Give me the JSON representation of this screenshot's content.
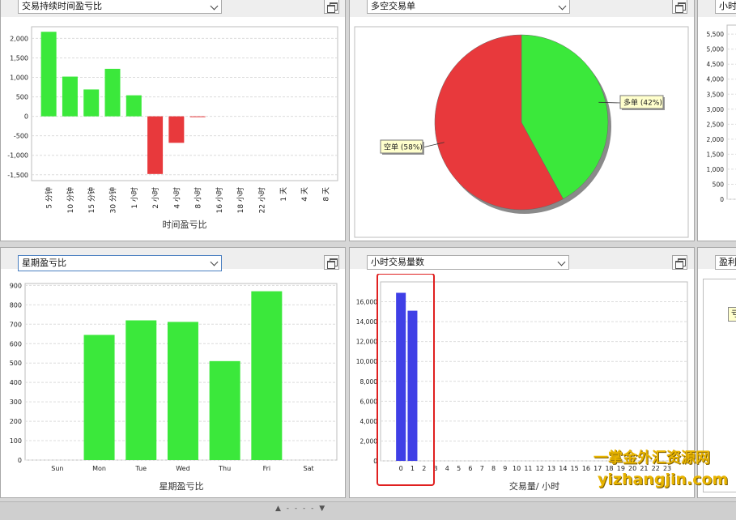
{
  "panels": {
    "p1": {
      "title": "交易持续时间盈亏比"
    },
    "p2": {
      "title": "多空交易单"
    },
    "p3": {
      "title": "小时"
    },
    "p4": {
      "title": "星期盈亏比"
    },
    "p5": {
      "title": "小时交易量数"
    },
    "p6": {
      "title": "盈利"
    }
  },
  "panel6_partial_label": "亏",
  "statusbar": {
    "grip": "▲ - - - - ▼"
  },
  "watermark": {
    "line1": "一掌金外汇资源网",
    "line2": "yizhangjin.com"
  },
  "colors": {
    "green": "#3be83b",
    "red": "#e8393c",
    "blue": "#3f3fe6",
    "highlight": "#e02020"
  },
  "chart_data": [
    {
      "id": "duration",
      "type": "bar",
      "categories": [
        "5 分钟",
        "10 分钟",
        "15 分钟",
        "30 分钟",
        "1 小时",
        "2 小时",
        "4 小时",
        "8 小时",
        "16 小时",
        "18 小时",
        "22 小时",
        "1 天",
        "4 天",
        "8 天"
      ],
      "values": [
        2170,
        1020,
        690,
        1220,
        540,
        -1480,
        -680,
        -15,
        0,
        0,
        0,
        0,
        0,
        0
      ],
      "xlabel": "时间盈亏比",
      "ylabel": "",
      "ylim": [
        -1650,
        2300
      ],
      "yticks": [
        2000,
        1500,
        1000,
        500,
        0,
        -500,
        -1000,
        -1500
      ],
      "ytick_labels": [
        "2,000",
        "1,500",
        "1,000",
        "500",
        "0",
        "-500",
        "-1,000",
        "-1,500"
      ],
      "grid": true
    },
    {
      "id": "longshort",
      "type": "pie",
      "slices": [
        {
          "label": "多单 (42%)",
          "value": 42,
          "color": "#3be83b"
        },
        {
          "label": "空单 (58%)",
          "value": 58,
          "color": "#e8393c"
        }
      ]
    },
    {
      "id": "hour_partial",
      "type": "bar",
      "ytick_labels": [
        "5,500",
        "5,000",
        "4,500",
        "4,000",
        "3,500",
        "3,000",
        "2,500",
        "2,000",
        "1,500",
        "1,000",
        "500",
        "0"
      ],
      "yticks": [
        5500,
        5000,
        4500,
        4000,
        3500,
        3000,
        2500,
        2000,
        1500,
        1000,
        500,
        0
      ],
      "ylim": [
        0,
        5800
      ]
    },
    {
      "id": "weekday",
      "type": "bar",
      "categories": [
        "Sun",
        "Mon",
        "Tue",
        "Wed",
        "Thu",
        "Fri",
        "Sat"
      ],
      "values": [
        0,
        645,
        720,
        712,
        510,
        870,
        0
      ],
      "xlabel": "星期盈亏比",
      "ylabel": "",
      "ylim": [
        0,
        910
      ],
      "yticks": [
        900,
        800,
        700,
        600,
        500,
        400,
        300,
        200,
        100,
        0
      ],
      "grid": true
    },
    {
      "id": "hourvolume",
      "type": "bar",
      "categories": [
        "0",
        "1",
        "2",
        "3",
        "4",
        "5",
        "6",
        "7",
        "8",
        "9",
        "10",
        "11",
        "12",
        "13",
        "14",
        "15",
        "16",
        "17",
        "18",
        "19",
        "20",
        "21",
        "22",
        "23"
      ],
      "values": [
        16900,
        15100,
        0,
        0,
        0,
        0,
        0,
        0,
        0,
        0,
        0,
        0,
        0,
        0,
        0,
        0,
        0,
        0,
        0,
        0,
        0,
        0,
        0,
        0
      ],
      "xlabel": "交易量/ 小时",
      "ylabel": "",
      "ylim": [
        0,
        18000
      ],
      "yticks": [
        16000,
        14000,
        12000,
        10000,
        8000,
        6000,
        4000,
        2000,
        0
      ],
      "ytick_labels": [
        "16,000",
        "14,000",
        "12,000",
        "10,000",
        "8,000",
        "6,000",
        "4,000",
        "2,000",
        "0"
      ],
      "grid": true
    }
  ]
}
